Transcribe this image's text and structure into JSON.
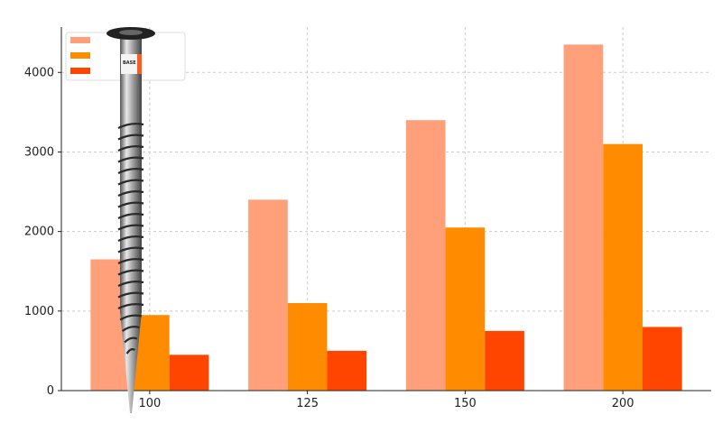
{
  "chart_data": {
    "type": "bar",
    "title": "",
    "xlabel": "",
    "ylabel": "",
    "categories": [
      "100",
      "125",
      "150",
      "200"
    ],
    "series": [
      {
        "values": [
          1650,
          2400,
          3400,
          4350
        ],
        "color": "#FFA07A"
      },
      {
        "values": [
          950,
          1100,
          2050,
          3100
        ],
        "color": "#FF8C00"
      },
      {
        "values": [
          450,
          500,
          750,
          800
        ],
        "color": "#FF4500"
      }
    ],
    "ylim": [
      0,
      4570
    ],
    "yticks": [
      0,
      1000,
      2000,
      3000,
      4000
    ],
    "grid": true,
    "legend": {
      "placement": "top-left",
      "entries_text": "none shown"
    }
  },
  "overlay_image": {
    "subject": "ground screw",
    "logo_text": "BASE",
    "colors": {
      "metal": "#9a9a9a",
      "flange": "#222222",
      "accent": "#FF5A1F"
    }
  }
}
